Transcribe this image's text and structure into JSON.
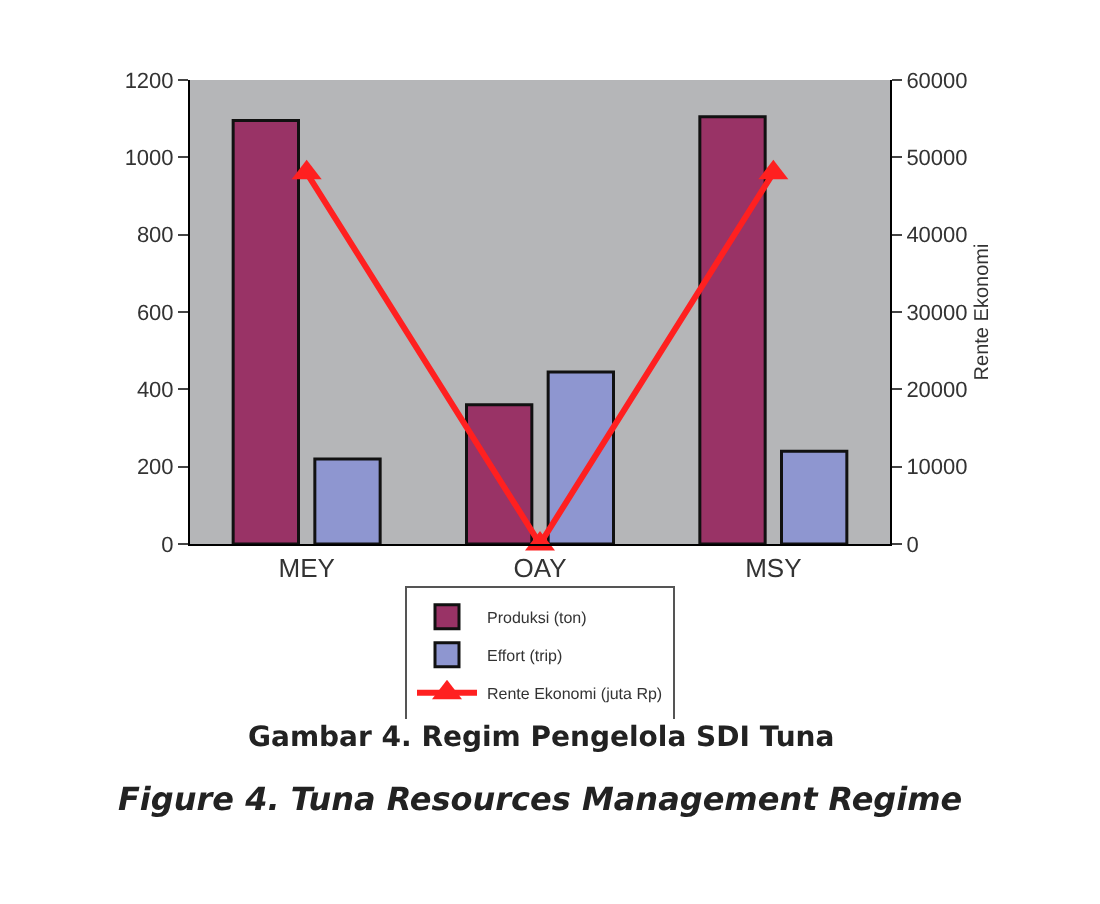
{
  "chart_data": {
    "type": "bar",
    "categories": [
      "MEY",
      "OAY",
      "MSY"
    ],
    "series": [
      {
        "name": "Produksi (ton)",
        "color": "#993366",
        "values": [
          1095,
          360,
          1105
        ]
      },
      {
        "name": "Effort (trip)",
        "color": "#8e96d0",
        "values": [
          220,
          445,
          240
        ]
      },
      {
        "name": "Rente Ekonomi (juta Rp)",
        "type": "line",
        "axis": "y2",
        "color": "#ff2020",
        "values": [
          48000,
          0,
          48000
        ]
      }
    ],
    "ylim": [
      0,
      1200
    ],
    "yticks": [
      0,
      200,
      400,
      600,
      800,
      1000,
      1200
    ],
    "y2lim": [
      0,
      60000
    ],
    "y2ticks": [
      0,
      10000,
      20000,
      30000,
      40000,
      50000,
      60000
    ],
    "y2label": "Rente Ekonomi",
    "marker": "triangle",
    "line_style": "solid",
    "grid": false,
    "legend": "bottom",
    "annotations": [
      "Gambar 4. Regim Pengelola SDI Tuna",
      "Figure 4. Tuna Resources Management Regime"
    ]
  }
}
